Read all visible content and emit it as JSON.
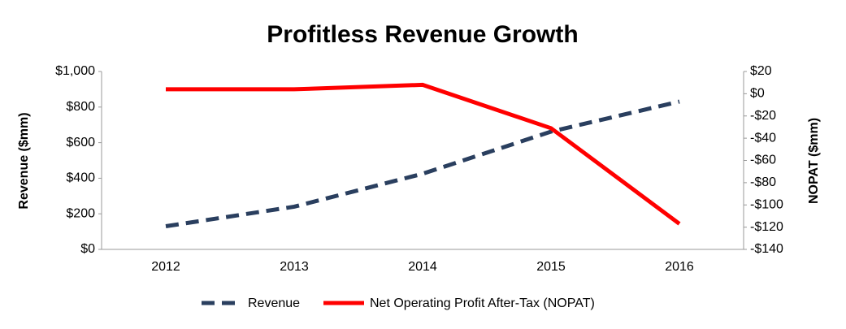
{
  "chart_data": {
    "type": "line",
    "title": "Profitless Revenue Growth",
    "y_label": "Revenue ($mm)",
    "y2_label": "NOPAT ($mm)",
    "categories": [
      "2012",
      "2013",
      "2014",
      "2015",
      "2016"
    ],
    "series": [
      {
        "name": "Revenue",
        "color": "#2a3f5f",
        "dash": true,
        "values": [
          130,
          240,
          425,
          662,
          831
        ]
      },
      {
        "name": "Net Operating Profit After-Tax (NOPAT)",
        "color": "#ff0000",
        "axis": "y2",
        "values": [
          4,
          4,
          8,
          -31,
          -117
        ]
      }
    ],
    "ylim": [
      0,
      1000
    ],
    "yticks": [
      {
        "value": 0,
        "label": "$0"
      },
      {
        "value": 200,
        "label": "$200"
      },
      {
        "value": 400,
        "label": "$400"
      },
      {
        "value": 600,
        "label": "$600"
      },
      {
        "value": 800,
        "label": "$800"
      },
      {
        "value": 1000,
        "label": "$1,000"
      }
    ],
    "y2lim": [
      -140,
      20
    ],
    "y2ticks": [
      {
        "value": -140,
        "label": "-$140"
      },
      {
        "value": -120,
        "label": "-$120"
      },
      {
        "value": -100,
        "label": "-$100"
      },
      {
        "value": -80,
        "label": "-$80"
      },
      {
        "value": -60,
        "label": "-$60"
      },
      {
        "value": -40,
        "label": "-$40"
      },
      {
        "value": -20,
        "label": "-$20"
      },
      {
        "value": 0,
        "label": "$0"
      },
      {
        "value": 20,
        "label": "$20"
      }
    ],
    "grid": false,
    "legend": "bottom"
  }
}
